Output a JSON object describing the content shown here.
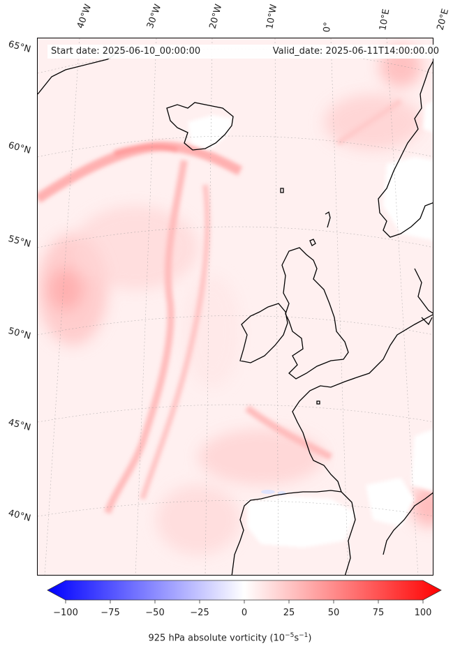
{
  "header": {
    "start_date": "Start date: 2025-06-10_00:00:00",
    "valid_date": "Valid_date: 2025-06-11T14:00:00.00"
  },
  "longitude_labels": [
    "40°W",
    "30°W",
    "20°W",
    "10°W",
    "0°",
    "10°E",
    "20°E"
  ],
  "latitude_labels": [
    "65°N",
    "60°N",
    "55°N",
    "50°N",
    "45°N",
    "40°N"
  ],
  "colorbar": {
    "ticks": [
      "−100",
      "−75",
      "−50",
      "−25",
      "0",
      "25",
      "50",
      "75",
      "100"
    ],
    "label_text": "925 hPa absolute vorticity (10",
    "label_exp1": "−5",
    "label_mid": "s",
    "label_exp2": "−1",
    "label_end": ")",
    "min_color": "#0000ff",
    "mid_color": "#ffffff",
    "max_color": "#ff0000"
  },
  "colors": {
    "land_mask": "#ffffff",
    "ocean_background": "#fff2f2",
    "coastline": "#000000"
  }
}
